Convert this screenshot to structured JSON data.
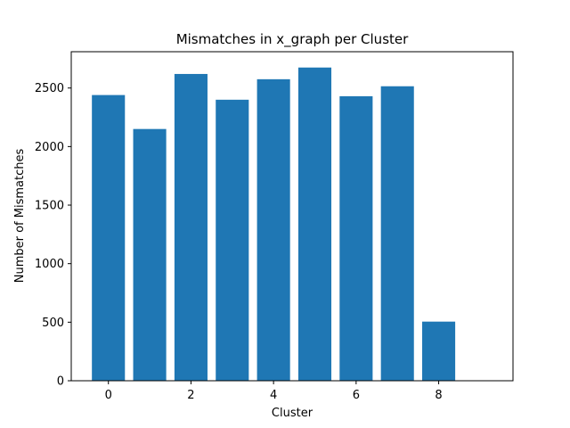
{
  "chart_data": {
    "type": "bar",
    "title": "Mismatches in x_graph per Cluster",
    "xlabel": "Cluster",
    "ylabel": "Number of Mismatches",
    "categories": [
      0,
      1,
      2,
      3,
      4,
      5,
      6,
      7,
      8
    ],
    "values": [
      2440,
      2150,
      2620,
      2400,
      2575,
      2675,
      2430,
      2515,
      505
    ],
    "xlim": [
      -0.9,
      9.8
    ],
    "ylim": [
      0,
      2810
    ],
    "xticks": [
      0,
      2,
      4,
      6,
      8
    ],
    "yticks": [
      0,
      500,
      1000,
      1500,
      2000,
      2500
    ],
    "grid": false,
    "bar_color": "#1f77b4"
  }
}
